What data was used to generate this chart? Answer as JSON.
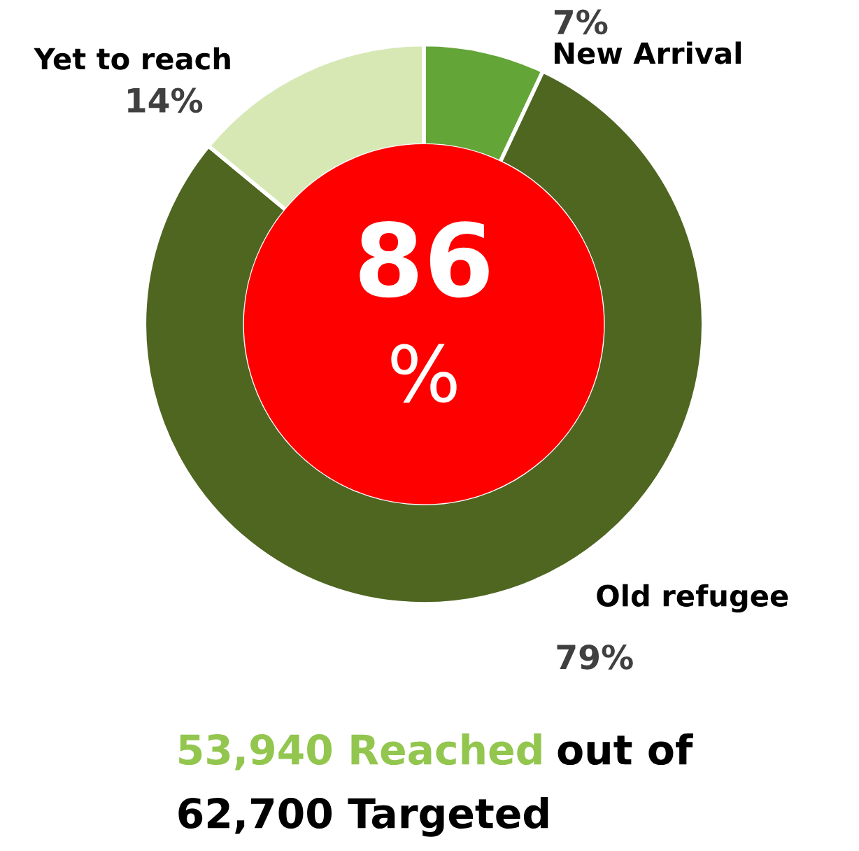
{
  "chart_data": {
    "type": "donut",
    "categories": [
      "New Arrival",
      "Old refugee",
      "Yet to reach"
    ],
    "values": [
      7,
      79,
      14
    ],
    "colors": [
      "#63a537",
      "#4e6620",
      "#d7e8b5"
    ],
    "value_labels": [
      "7%",
      "79%",
      "14%"
    ],
    "legend": false,
    "annotations": [
      "86",
      "%",
      "53,940 Reached",
      "out of",
      "62,700 Targeted"
    ]
  }
}
